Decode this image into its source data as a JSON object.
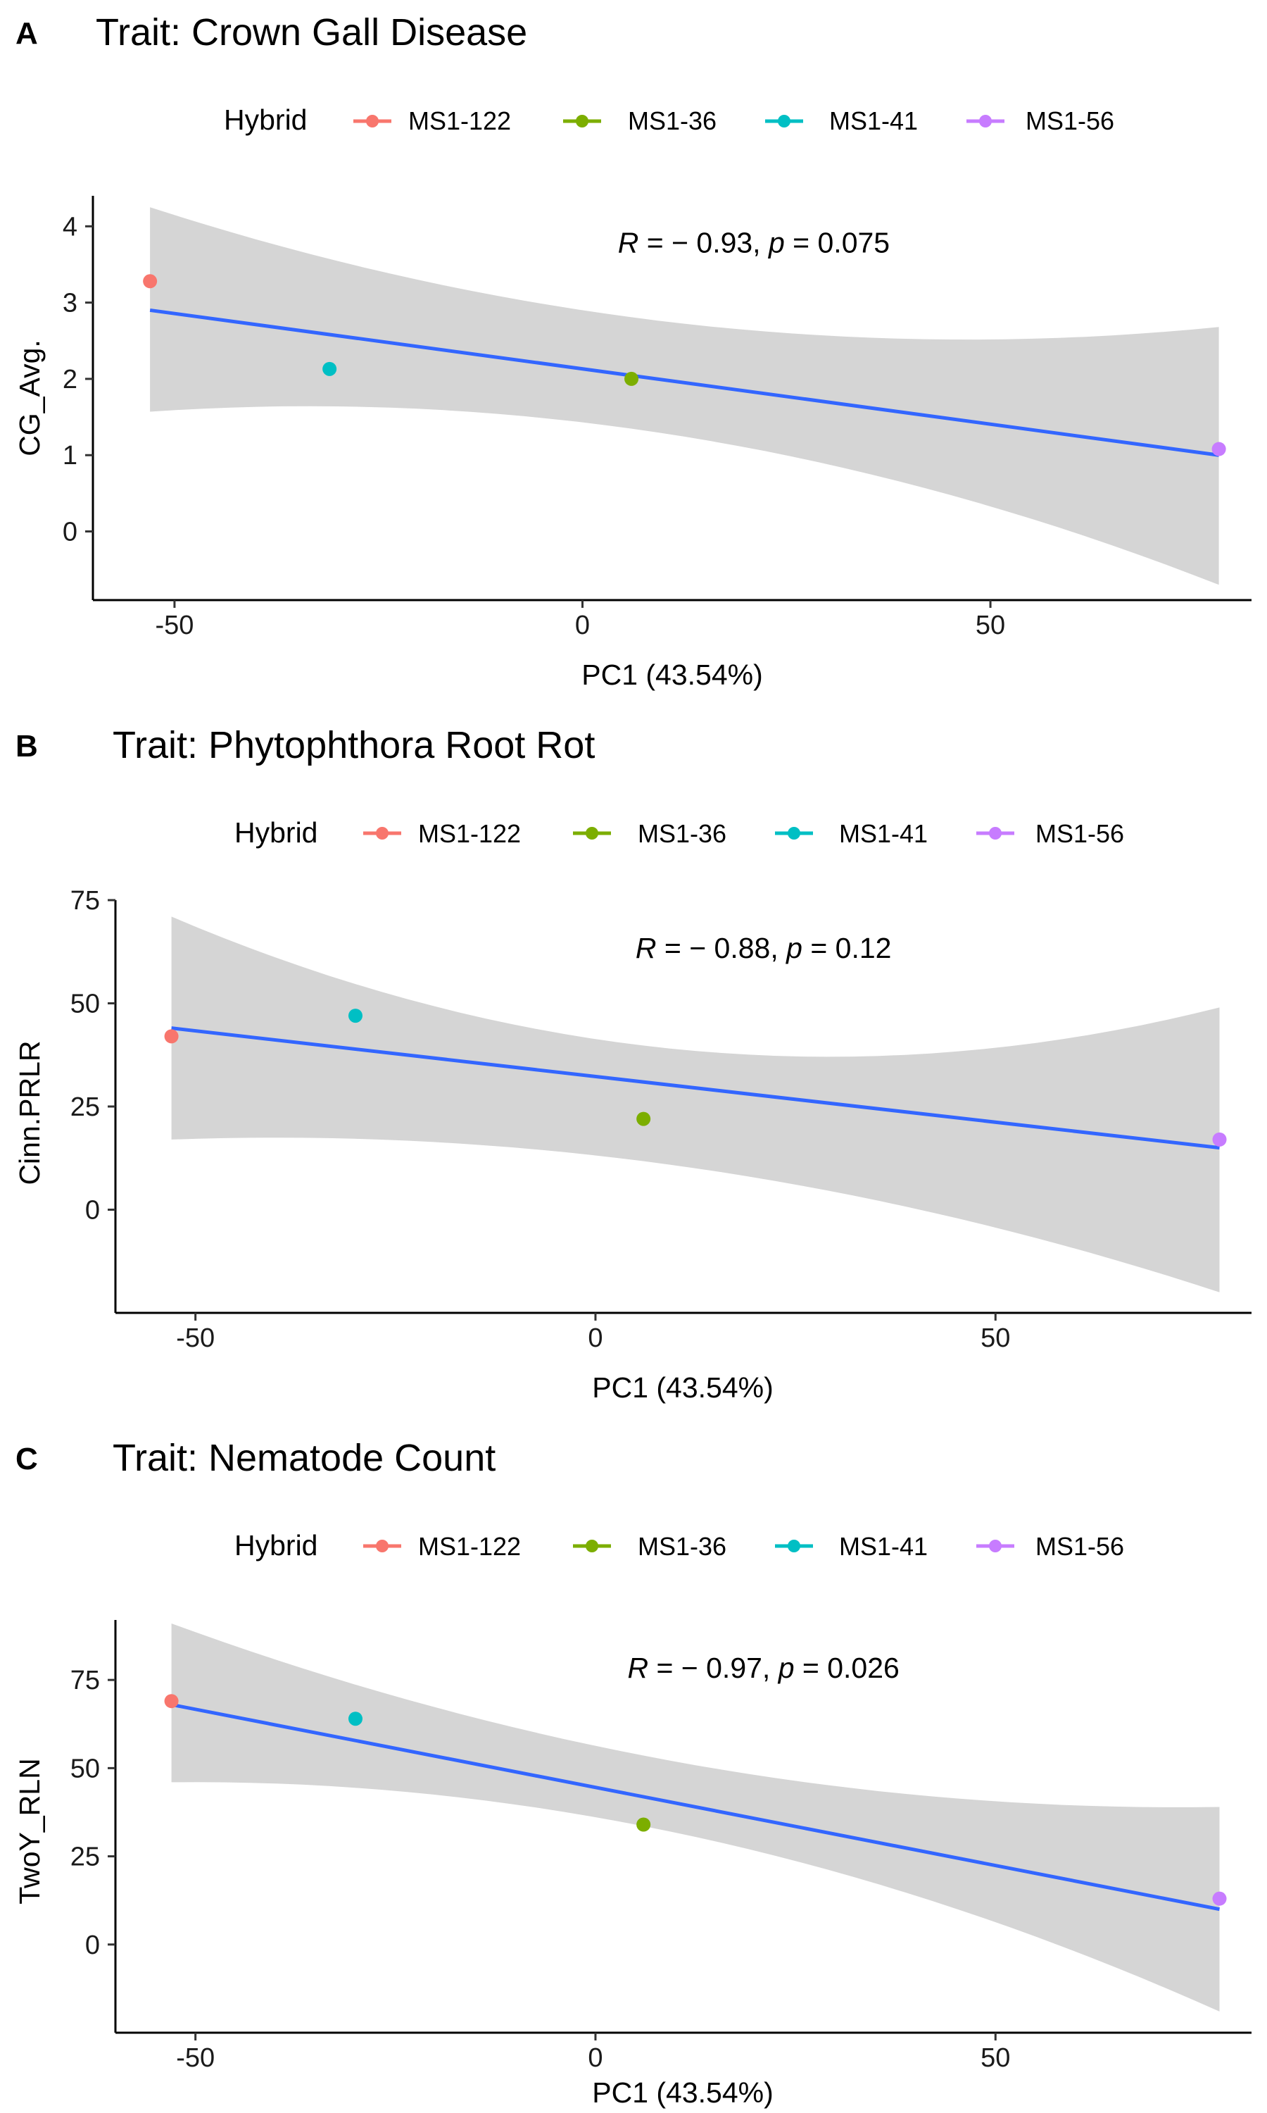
{
  "legend": {
    "title": "Hybrid",
    "entries": [
      {
        "name": "MS1-122",
        "color": "#F8766D"
      },
      {
        "name": "MS1-36",
        "color": "#7CAE00"
      },
      {
        "name": "MS1-41",
        "color": "#00BFC4"
      },
      {
        "name": "MS1-56",
        "color": "#C77CFF"
      }
    ]
  },
  "chart_data": [
    {
      "type": "scatter",
      "panel": "A",
      "title": "Trait: Crown Gall Disease",
      "xlabel": "PC1 (43.54%)",
      "ylabel": "CG_Avg.",
      "xlim": [
        -60,
        82
      ],
      "ylim": [
        -0.9,
        4.4
      ],
      "xticks": [
        -50,
        0,
        50
      ],
      "yticks": [
        0,
        1,
        2,
        3,
        4
      ],
      "annotation": {
        "r_label": "R",
        "r_value": " = − 0.93, ",
        "p_label": "p",
        "p_value": " = 0.075"
      },
      "points": [
        {
          "hybrid": "MS1-122",
          "x": -53,
          "y": 3.28
        },
        {
          "hybrid": "MS1-41",
          "x": -31,
          "y": 2.13
        },
        {
          "hybrid": "MS1-36",
          "x": 6,
          "y": 2.0
        },
        {
          "hybrid": "MS1-56",
          "x": 78,
          "y": 1.08
        }
      ],
      "fit": {
        "x": [
          -53,
          78
        ],
        "y": [
          2.9,
          1.0
        ]
      },
      "ci": {
        "x": [
          -53,
          0,
          78
        ],
        "lower": [
          1.57,
          1.43,
          -0.7
        ],
        "upper": [
          4.25,
          2.9,
          2.68
        ]
      },
      "grid": false,
      "legend_position": "top"
    },
    {
      "type": "scatter",
      "panel": "B",
      "title": "Trait: Phytophthora Root Rot",
      "xlabel": "PC1 (43.54%)",
      "ylabel": "Cinn.PRLR",
      "xlim": [
        -60,
        82
      ],
      "ylim": [
        -25,
        75
      ],
      "xticks": [
        -50,
        0,
        50
      ],
      "yticks": [
        0,
        25,
        50,
        75
      ],
      "annotation": {
        "r_label": "R",
        "r_value": " = − 0.88, ",
        "p_label": "p",
        "p_value": " = 0.12"
      },
      "points": [
        {
          "hybrid": "MS1-122",
          "x": -53,
          "y": 42
        },
        {
          "hybrid": "MS1-41",
          "x": -30,
          "y": 47
        },
        {
          "hybrid": "MS1-36",
          "x": 6,
          "y": 22
        },
        {
          "hybrid": "MS1-56",
          "x": 78,
          "y": 17
        }
      ],
      "fit": {
        "x": [
          -53,
          78
        ],
        "y": [
          44,
          15
        ]
      },
      "ci": {
        "x": [
          -53,
          5,
          78
        ],
        "lower": [
          17,
          12,
          -20
        ],
        "upper": [
          71,
          40,
          49
        ]
      },
      "grid": false,
      "legend_position": "top"
    },
    {
      "type": "scatter",
      "panel": "C",
      "title": "Trait: Nematode Count",
      "xlabel": "PC1 (43.54%)",
      "ylabel": "TwoY_RLN",
      "xlim": [
        -60,
        82
      ],
      "ylim": [
        -25,
        92
      ],
      "xticks": [
        -50,
        0,
        50
      ],
      "yticks": [
        0,
        25,
        50,
        75
      ],
      "annotation": {
        "r_label": "R",
        "r_value": " = − 0.97, ",
        "p_label": "p",
        "p_value": " = 0.026"
      },
      "points": [
        {
          "hybrid": "MS1-122",
          "x": -53,
          "y": 69
        },
        {
          "hybrid": "MS1-41",
          "x": -30,
          "y": 64
        },
        {
          "hybrid": "MS1-36",
          "x": 6,
          "y": 34
        },
        {
          "hybrid": "MS1-56",
          "x": 78,
          "y": 13
        }
      ],
      "fit": {
        "x": [
          -53,
          78
        ],
        "y": [
          68,
          10
        ]
      },
      "ci": {
        "x": [
          -53,
          5,
          78
        ],
        "lower": [
          46,
          34,
          -19
        ],
        "upper": [
          91,
          54,
          39
        ]
      },
      "grid": false,
      "legend_position": "top"
    }
  ]
}
